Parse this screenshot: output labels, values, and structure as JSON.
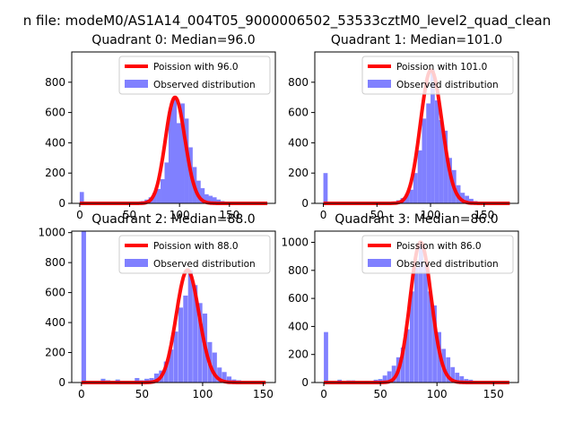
{
  "figure_title": "n file: modeM0/AS1A14_004T05_9000006502_53533cztM0_level2_quad_clean",
  "colors": {
    "poisson": "#ff0000",
    "observed": "#8080ff"
  },
  "chart_data": [
    {
      "type": "bar",
      "title": "Quadrant 0: Median=96.0",
      "median": 96.0,
      "xlim": [
        -8,
        196
      ],
      "ylim": [
        0,
        1000
      ],
      "xticks": [
        0,
        50,
        100,
        150
      ],
      "yticks": [
        0,
        200,
        400,
        600,
        800
      ],
      "bin_width": 4.2,
      "hist": [
        [
          0,
          75
        ],
        [
          57,
          5
        ],
        [
          61,
          15
        ],
        [
          65,
          25
        ],
        [
          69,
          40
        ],
        [
          73,
          70
        ],
        [
          77,
          95
        ],
        [
          81,
          160
        ],
        [
          85,
          270
        ],
        [
          89,
          630
        ],
        [
          93,
          700
        ],
        [
          97,
          530
        ],
        [
          101,
          660
        ],
        [
          105,
          560
        ],
        [
          109,
          370
        ],
        [
          113,
          240
        ],
        [
          117,
          150
        ],
        [
          121,
          100
        ],
        [
          125,
          60
        ],
        [
          129,
          50
        ],
        [
          133,
          40
        ],
        [
          137,
          25
        ],
        [
          141,
          15
        ],
        [
          145,
          10
        ],
        [
          149,
          5
        ]
      ],
      "legend": [
        "Poission with 96.0",
        "Observed distribution"
      ]
    },
    {
      "type": "bar",
      "title": "Quadrant 1: Median=101.0",
      "median": 101.0,
      "xlim": [
        -8,
        182
      ],
      "ylim": [
        0,
        1000
      ],
      "xticks": [
        0,
        50,
        100,
        150
      ],
      "yticks": [
        0,
        200,
        400,
        600,
        800
      ],
      "bin_width": 4.0,
      "hist": [
        [
          0,
          200
        ],
        [
          30,
          5
        ],
        [
          40,
          5
        ],
        [
          50,
          5
        ],
        [
          64,
          10
        ],
        [
          68,
          20
        ],
        [
          72,
          35
        ],
        [
          76,
          60
        ],
        [
          80,
          90
        ],
        [
          84,
          200
        ],
        [
          88,
          350
        ],
        [
          92,
          560
        ],
        [
          96,
          660
        ],
        [
          100,
          880
        ],
        [
          104,
          680
        ],
        [
          108,
          550
        ],
        [
          112,
          480
        ],
        [
          116,
          300
        ],
        [
          120,
          220
        ],
        [
          124,
          120
        ],
        [
          128,
          70
        ],
        [
          132,
          50
        ],
        [
          136,
          30
        ],
        [
          140,
          15
        ],
        [
          146,
          5
        ]
      ],
      "legend": [
        "Poission with 101.0",
        "Observed distribution"
      ]
    },
    {
      "type": "bar",
      "title": "Quadrant 2: Median=88.0",
      "median": 88.0,
      "xlim": [
        -8,
        160
      ],
      "ylim": [
        0,
        1010
      ],
      "xticks": [
        0,
        50,
        100,
        150
      ],
      "yticks": [
        0,
        200,
        400,
        600,
        800,
        1000
      ],
      "bin_width": 3.8,
      "hist": [
        [
          0,
          1010
        ],
        [
          16,
          25
        ],
        [
          20,
          15
        ],
        [
          24,
          10
        ],
        [
          28,
          20
        ],
        [
          32,
          10
        ],
        [
          36,
          10
        ],
        [
          44,
          30
        ],
        [
          48,
          15
        ],
        [
          52,
          25
        ],
        [
          56,
          30
        ],
        [
          60,
          60
        ],
        [
          64,
          80
        ],
        [
          68,
          140
        ],
        [
          72,
          220
        ],
        [
          76,
          340
        ],
        [
          80,
          500
        ],
        [
          84,
          580
        ],
        [
          88,
          750
        ],
        [
          92,
          650
        ],
        [
          96,
          530
        ],
        [
          100,
          460
        ],
        [
          104,
          270
        ],
        [
          108,
          200
        ],
        [
          112,
          100
        ],
        [
          116,
          70
        ],
        [
          120,
          40
        ],
        [
          124,
          20
        ],
        [
          128,
          15
        ],
        [
          132,
          10
        ],
        [
          140,
          5
        ]
      ],
      "legend": [
        "Poission with 88.0",
        "Observed distribution"
      ]
    },
    {
      "type": "bar",
      "title": "Quadrant 3: Median=86.0",
      "median": 86.0,
      "xlim": [
        -8,
        172
      ],
      "ylim": [
        0,
        1080
      ],
      "xticks": [
        0,
        50,
        100,
        150
      ],
      "yticks": [
        0,
        200,
        400,
        600,
        800,
        1000
      ],
      "bin_width": 3.8,
      "hist": [
        [
          0,
          360
        ],
        [
          12,
          20
        ],
        [
          20,
          15
        ],
        [
          24,
          15
        ],
        [
          28,
          10
        ],
        [
          36,
          10
        ],
        [
          44,
          20
        ],
        [
          48,
          25
        ],
        [
          52,
          50
        ],
        [
          56,
          80
        ],
        [
          60,
          120
        ],
        [
          64,
          180
        ],
        [
          68,
          250
        ],
        [
          72,
          380
        ],
        [
          76,
          650
        ],
        [
          80,
          820
        ],
        [
          84,
          1000
        ],
        [
          88,
          840
        ],
        [
          92,
          650
        ],
        [
          96,
          550
        ],
        [
          100,
          360
        ],
        [
          104,
          240
        ],
        [
          108,
          180
        ],
        [
          112,
          110
        ],
        [
          116,
          70
        ],
        [
          120,
          45
        ],
        [
          124,
          25
        ],
        [
          128,
          20
        ],
        [
          132,
          10
        ],
        [
          140,
          5
        ]
      ],
      "legend": [
        "Poission with 86.0",
        "Observed distribution"
      ]
    }
  ]
}
